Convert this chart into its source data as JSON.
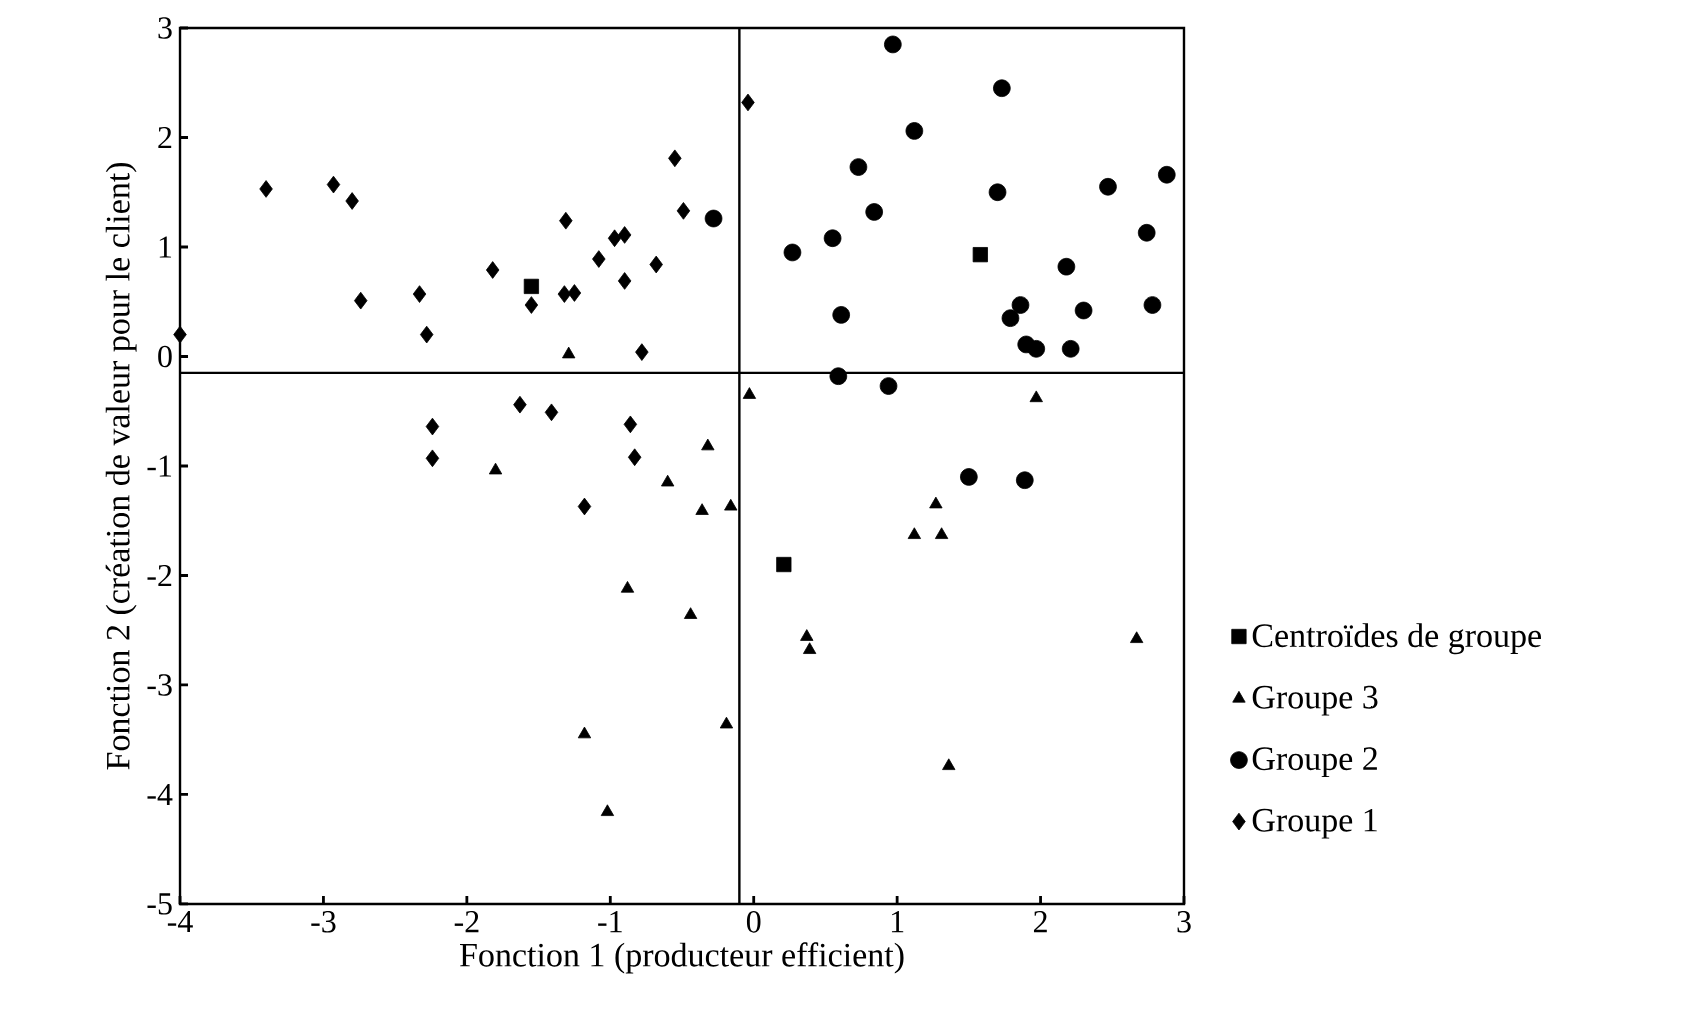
{
  "chart_data": {
    "type": "scatter",
    "xlabel": "Fonction 1 (producteur efficient)",
    "ylabel": "Fonction 2 (création de valeur pour le client)",
    "xlim": [
      -4,
      3
    ],
    "ylim": [
      -5,
      3
    ],
    "xticks": [
      -4,
      -3,
      -2,
      -1,
      0,
      1,
      2,
      3
    ],
    "yticks": [
      -5,
      -4,
      -3,
      -2,
      -1,
      0,
      1,
      2,
      3
    ],
    "legend": "right",
    "grid": false,
    "ref_lines": [
      {
        "axis": "x",
        "value": -0.1,
        "color": "#000000"
      },
      {
        "axis": "y",
        "value": -0.15,
        "color": "#000000"
      }
    ],
    "series": [
      {
        "name": "Centroïdes de groupe",
        "color": "#000000",
        "marker": "square",
        "x": [
          -1.55,
          1.58,
          0.21
        ],
        "values": [
          0.64,
          0.93,
          -1.9
        ]
      },
      {
        "name": "Groupe 3",
        "color": "#000000",
        "marker": "triangle",
        "x": [
          -1.29,
          -0.03,
          -0.32,
          -1.8,
          -0.6,
          -0.36,
          -0.16,
          -0.88,
          -0.44,
          -1.18,
          -0.19,
          -1.02,
          1.97,
          1.27,
          1.12,
          1.31,
          0.37,
          0.39,
          2.67,
          1.36
        ],
        "values": [
          0.02,
          -0.35,
          -0.82,
          -1.04,
          -1.15,
          -1.41,
          -1.37,
          -2.12,
          -2.36,
          -3.45,
          -3.36,
          -4.16,
          -0.38,
          -1.35,
          -1.63,
          -1.63,
          -2.56,
          -2.68,
          -2.58,
          -3.74
        ]
      },
      {
        "name": "Groupe 2",
        "color": "#000000",
        "marker": "circle",
        "x": [
          -0.28,
          0.97,
          1.73,
          1.12,
          0.73,
          1.7,
          2.47,
          2.88,
          0.84,
          0.55,
          0.27,
          2.74,
          2.18,
          0.61,
          1.86,
          1.79,
          2.3,
          2.78,
          1.9,
          1.97,
          2.21,
          0.59,
          0.94,
          1.5,
          1.89
        ],
        "values": [
          1.26,
          2.85,
          2.45,
          2.06,
          1.73,
          1.5,
          1.55,
          1.66,
          1.32,
          1.08,
          0.95,
          1.13,
          0.82,
          0.38,
          0.47,
          0.35,
          0.42,
          0.47,
          0.11,
          0.07,
          0.07,
          -0.18,
          -0.27,
          -1.1,
          -1.13
        ]
      },
      {
        "name": "Groupe 1",
        "color": "#000000",
        "marker": "diamond",
        "x": [
          -4.0,
          -3.4,
          -2.93,
          -2.8,
          -2.74,
          -2.33,
          -2.28,
          -1.82,
          -1.55,
          -1.32,
          -1.25,
          -1.31,
          -1.08,
          -0.97,
          -0.9,
          -0.9,
          -0.68,
          -0.55,
          -0.49,
          -0.78,
          -0.04,
          -2.24,
          -1.63,
          -1.41,
          -0.86,
          -2.24,
          -0.83,
          -1.18
        ],
        "values": [
          0.2,
          1.53,
          1.57,
          1.42,
          0.51,
          0.57,
          0.2,
          0.79,
          0.47,
          0.57,
          0.58,
          1.24,
          0.89,
          1.08,
          1.11,
          0.69,
          0.84,
          1.81,
          1.33,
          0.04,
          2.32,
          -0.64,
          -0.44,
          -0.51,
          -0.62,
          -0.93,
          -0.92,
          -1.37
        ]
      }
    ]
  }
}
